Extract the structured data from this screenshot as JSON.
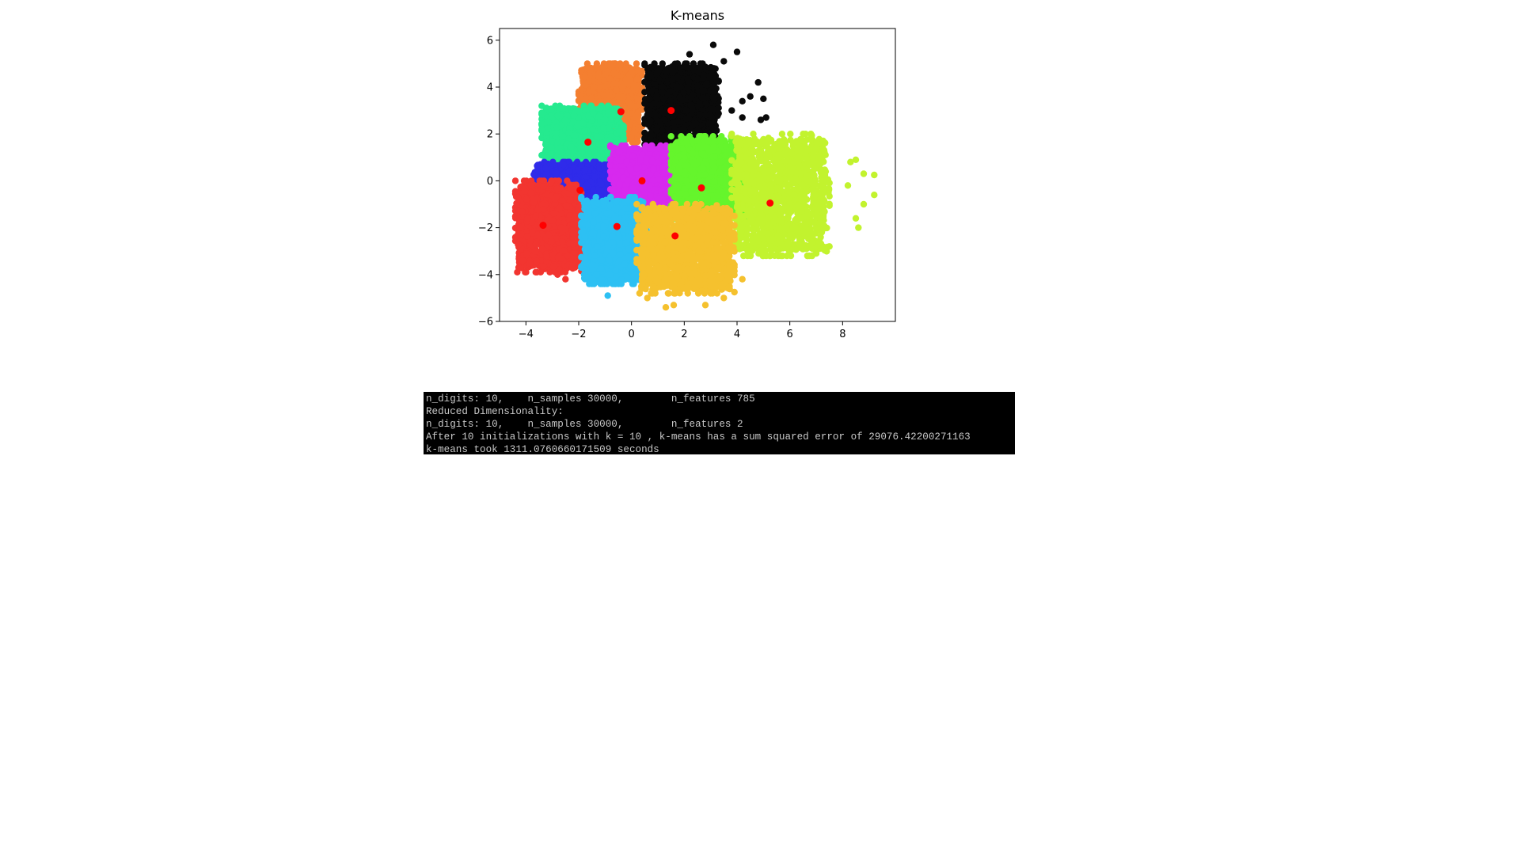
{
  "chart_data": {
    "type": "scatter",
    "title": "K-means",
    "xlabel": "",
    "ylabel": "",
    "xlim": [
      -5,
      10
    ],
    "ylim": [
      -6,
      6.5
    ],
    "xticks": [
      -4,
      -2,
      0,
      2,
      4,
      6,
      8
    ],
    "yticks": [
      -6,
      -4,
      -2,
      0,
      2,
      4,
      6
    ],
    "grid": false,
    "legend": "none",
    "centroid_color": "#ff0000",
    "centroids": [
      {
        "x": -0.4,
        "y": 2.95
      },
      {
        "x": 1.5,
        "y": 3.0
      },
      {
        "x": -1.65,
        "y": 1.65
      },
      {
        "x": -1.95,
        "y": -0.4
      },
      {
        "x": 0.4,
        "y": 0.0
      },
      {
        "x": 2.65,
        "y": -0.3
      },
      {
        "x": 5.25,
        "y": -0.95
      },
      {
        "x": -3.35,
        "y": -1.9
      },
      {
        "x": -0.55,
        "y": -1.95
      },
      {
        "x": 1.65,
        "y": -2.35
      }
    ],
    "clusters": [
      {
        "color": "#f47f30",
        "x": [
          -2.0,
          0.4
        ],
        "y": [
          1.6,
          5.0
        ]
      },
      {
        "color": "#0a0a0a",
        "x": [
          0.5,
          3.3
        ],
        "y": [
          1.3,
          5.0
        ]
      },
      {
        "color": "#25ea8f",
        "x": [
          -3.4,
          -0.3
        ],
        "y": [
          0.6,
          3.2
        ]
      },
      {
        "color": "#2f2bea",
        "x": [
          -3.7,
          -0.7
        ],
        "y": [
          -1.7,
          0.8
        ]
      },
      {
        "color": "#d729ee",
        "x": [
          -0.8,
          1.8
        ],
        "y": [
          -1.2,
          1.5
        ]
      },
      {
        "color": "#65f52c",
        "x": [
          1.5,
          4.4
        ],
        "y": [
          -1.8,
          1.9
        ]
      },
      {
        "color": "#c2f32e",
        "x": [
          3.8,
          7.5
        ],
        "y": [
          -3.2,
          2.0
        ]
      },
      {
        "color": "#f23530",
        "x": [
          -4.4,
          -1.9
        ],
        "y": [
          -3.9,
          0.0
        ]
      },
      {
        "color": "#2dc0f3",
        "x": [
          -1.9,
          0.6
        ],
        "y": [
          -4.4,
          -0.7
        ]
      },
      {
        "color": "#f5c12e",
        "x": [
          0.2,
          3.9
        ],
        "y": [
          -4.8,
          -1.0
        ]
      }
    ],
    "outliers": [
      {
        "color": "#0a0a0a",
        "points": [
          [
            3.1,
            5.8
          ],
          [
            4.0,
            5.5
          ],
          [
            3.5,
            5.1
          ],
          [
            2.2,
            5.4
          ],
          [
            4.8,
            4.2
          ],
          [
            4.5,
            3.6
          ],
          [
            5.0,
            3.5
          ],
          [
            4.2,
            3.4
          ],
          [
            4.9,
            2.6
          ],
          [
            4.2,
            2.7
          ],
          [
            5.1,
            2.7
          ],
          [
            3.8,
            3.0
          ]
        ]
      },
      {
        "color": "#c2f32e",
        "points": [
          [
            9.2,
            0.25
          ],
          [
            9.2,
            -0.6
          ],
          [
            8.8,
            -1.0
          ],
          [
            8.5,
            0.9
          ],
          [
            8.8,
            0.3
          ],
          [
            8.6,
            -2.0
          ],
          [
            8.5,
            -1.6
          ],
          [
            8.2,
            -0.2
          ],
          [
            7.0,
            -3.1
          ],
          [
            7.5,
            -2.8
          ],
          [
            6.9,
            1.2
          ],
          [
            7.3,
            1.3
          ],
          [
            8.3,
            0.8
          ]
        ]
      },
      {
        "color": "#f5c12e",
        "points": [
          [
            3.5,
            -5.0
          ],
          [
            3.4,
            -4.5
          ],
          [
            2.8,
            -5.3
          ],
          [
            1.3,
            -5.4
          ],
          [
            1.6,
            -5.3
          ],
          [
            4.2,
            -4.2
          ],
          [
            0.6,
            -5.0
          ],
          [
            0.9,
            -4.8
          ]
        ]
      },
      {
        "color": "#2dc0f3",
        "points": [
          [
            -0.9,
            -4.9
          ]
        ]
      },
      {
        "color": "#f23530",
        "points": [
          [
            -2.5,
            -4.2
          ],
          [
            -2.8,
            -4.0
          ]
        ]
      }
    ],
    "point_count_per_cluster": 1400
  },
  "console": {
    "lines": [
      "n_digits: 10,\t n_samples 30000,\t n_features 785",
      "Reduced Dimensionality:",
      "n_digits: 10,\t n_samples 30000,\t n_features 2",
      "After 10 initializations with k = 10 , k-means has a sum squared error of 29076.42200271163",
      "k-means took 1311.0760660171509 seconds"
    ],
    "text_color": "#c8c8c8",
    "background_color": "#000000"
  }
}
